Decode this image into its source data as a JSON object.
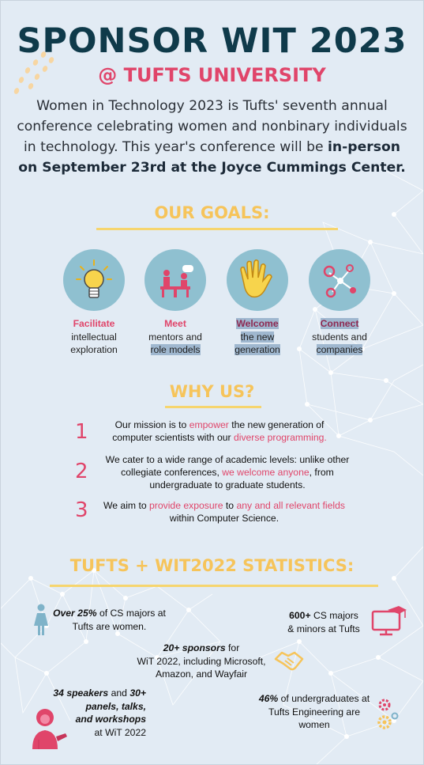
{
  "header": {
    "title": "SPONSOR WIT 2023",
    "subtitle": "@ TUFTS UNIVERSITY",
    "intro_plain": "Women in Technology 2023 is Tufts' seventh annual conference celebrating women and nonbinary individuals in technology. This year's conference will be ",
    "intro_bold": "in-person on September 23rd at the Joyce Cummings Center."
  },
  "goals": {
    "heading": "OUR GOALS:",
    "items": [
      {
        "key": "Facilitate",
        "l1": "intellectual",
        "l2": "exploration",
        "icon": "lightbulb-icon"
      },
      {
        "key": "Meet",
        "l1": "mentors and",
        "l2": "role models",
        "icon": "meeting-icon"
      },
      {
        "key": "Welcome",
        "l1": "the new",
        "l2": "generation",
        "icon": "waving-hand-icon"
      },
      {
        "key": "Connect",
        "l1": "students and",
        "l2": "companies",
        "icon": "network-icon"
      }
    ]
  },
  "why": {
    "heading": "WHY US?",
    "items": [
      {
        "num": "1",
        "a": "Our mission is to ",
        "b": "empower",
        "c": " the new generation of",
        "d": "computer scientists with our ",
        "e": "diverse programming."
      },
      {
        "num": "2",
        "a": "We cater to a wide range of academic levels: unlike other",
        "b": "collegiate conferences, ",
        "c": "we welcome anyone",
        "d": ", from",
        "e": "undergraduate to graduate students."
      },
      {
        "num": "3",
        "a": "We aim to ",
        "b": "provide exposure",
        "c": " to ",
        "d": "any and all relevant fields",
        "e": "within Computer Science."
      }
    ]
  },
  "stats": {
    "heading": "TUFTS + WIT2022 STATISTICS:",
    "s1": {
      "bold": "Over 25%",
      "rest": " of CS majors at",
      "l2": "Tufts are women."
    },
    "s2": {
      "bold": "600+",
      "rest": " CS majors",
      "l2": "& minors at Tufts"
    },
    "s3": {
      "bold": "20+ sponsors",
      "rest": " for",
      "l2": "WiT 2022, including Microsoft,",
      "l3": "Amazon, and Wayfair"
    },
    "s4": {
      "b1": "34 speakers",
      "r1": " and ",
      "b2": "30+",
      "b3": "panels, talks,",
      "b4": "and workshops",
      "r2": " at WiT 2022"
    },
    "s5": {
      "bold": "46%",
      "rest": " of undergraduates at",
      "l2": "Tufts Engineering are",
      "l3": "women"
    }
  },
  "colors": {
    "navy": "#0f3a4a",
    "pink": "#e0456a",
    "yellow": "#f6c45a",
    "teal": "#8fc0d0"
  }
}
